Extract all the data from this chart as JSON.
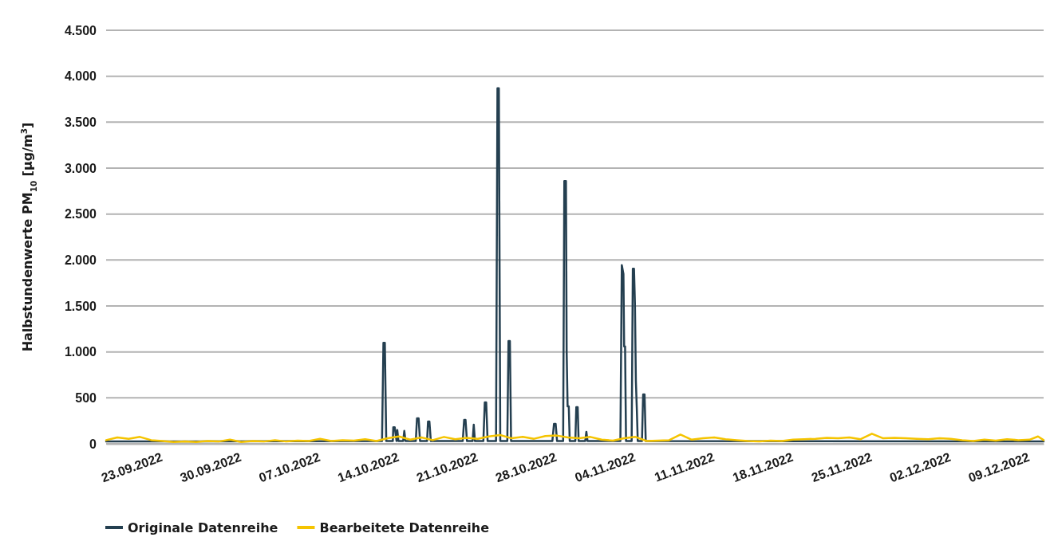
{
  "chart_data": {
    "type": "line",
    "ylabel": "Halbstundenwerte PM$_{10}$  [µg/m$^{3}$]",
    "xlim": [
      "2022-09-18T12:00",
      "2022-12-10T18:00"
    ],
    "xticks": [
      {
        "value": "2022-09-23T00:00",
        "label": "23.09.2022"
      },
      {
        "value": "2022-09-30T00:00",
        "label": "30.09.2022"
      },
      {
        "value": "2022-10-07T00:00",
        "label": "07.10.2022"
      },
      {
        "value": "2022-10-14T00:00",
        "label": "14.10.2022"
      },
      {
        "value": "2022-10-21T00:00",
        "label": "21.10.2022"
      },
      {
        "value": "2022-10-28T00:00",
        "label": "28.10.2022"
      },
      {
        "value": "2022-11-04T00:00",
        "label": "04.11.2022"
      },
      {
        "value": "2022-11-11T00:00",
        "label": "11.11.2022"
      },
      {
        "value": "2022-11-18T00:00",
        "label": "18.11.2022"
      },
      {
        "value": "2022-11-25T00:00",
        "label": "25.11.2022"
      },
      {
        "value": "2022-12-02T00:00",
        "label": "02.12.2022"
      },
      {
        "value": "2022-12-09T00:00",
        "label": "09.12.2022"
      }
    ],
    "ylim": [
      0,
      4500
    ],
    "yticks": [
      0,
      500,
      {
        "value": 1000,
        "label": "1.000"
      },
      {
        "value": 1500,
        "label": "1.500"
      },
      {
        "value": 2000,
        "label": "2.000"
      },
      {
        "value": 2500,
        "label": "2.500"
      },
      {
        "value": 3000,
        "label": "3.000"
      },
      {
        "value": 3500,
        "label": "3.500"
      },
      {
        "value": 4000,
        "label": "4.000"
      },
      {
        "value": 4500,
        "label": "4.500"
      }
    ],
    "grid": "y",
    "legend": "bottom",
    "line_style": "solid",
    "series": [
      {
        "name": "Originale Datenreihe",
        "color": "#243f50",
        "x": [
          "2022-09-18T12:00",
          "2022-10-13T00:00",
          "2022-10-13T03:00",
          "2022-10-13T06:00",
          "2022-10-13T09:00",
          "2022-10-13T23:00",
          "2022-10-14T00:00",
          "2022-10-14T03:00",
          "2022-10-14T07:00",
          "2022-10-14T08:30",
          "2022-10-14T11:00",
          "2022-10-14T21:00",
          "2022-10-14T23:30",
          "2022-10-15T02:00",
          "2022-10-16T00:00",
          "2022-10-16T02:30",
          "2022-10-16T06:00",
          "2022-10-16T09:00",
          "2022-10-17T00:00",
          "2022-10-17T02:00",
          "2022-10-17T05:00",
          "2022-10-17T08:00",
          "2022-10-20T04:00",
          "2022-10-20T07:00",
          "2022-10-20T10:00",
          "2022-10-20T13:00",
          "2022-10-21T01:00",
          "2022-10-21T03:30",
          "2022-10-21T06:00",
          "2022-10-22T00:00",
          "2022-10-22T03:00",
          "2022-10-22T06:00",
          "2022-10-22T09:00",
          "2022-10-23T03:00",
          "2022-10-23T06:00",
          "2022-10-23T09:00",
          "2022-10-23T12:00",
          "2022-10-24T03:00",
          "2022-10-24T05:30",
          "2022-10-24T08:30",
          "2022-10-24T11:00",
          "2022-10-28T03:00",
          "2022-10-28T06:30",
          "2022-10-28T10:00",
          "2022-10-28T13:00",
          "2022-10-29T02:00",
          "2022-10-29T04:30",
          "2022-10-29T08:00",
          "2022-10-29T09:30",
          "2022-10-29T11:30",
          "2022-10-29T14:00",
          "2022-10-29T16:00",
          "2022-10-30T04:00",
          "2022-10-30T06:00",
          "2022-10-30T09:00",
          "2022-10-30T11:00",
          "2022-10-31T01:00",
          "2022-10-31T03:30",
          "2022-10-31T06:00",
          "2022-11-03T04:00",
          "2022-11-03T07:00",
          "2022-11-03T10:30",
          "2022-11-03T12:00",
          "2022-11-03T14:00",
          "2022-11-03T16:00",
          "2022-11-04T04:00",
          "2022-11-04T06:30",
          "2022-11-04T09:00",
          "2022-11-04T11:00",
          "2022-11-04T13:00",
          "2022-11-04T15:00",
          "2022-11-04T17:00",
          "2022-11-05T02:00",
          "2022-11-05T04:30",
          "2022-11-05T07:30",
          "2022-11-05T10:00",
          "2022-12-10T18:00"
        ],
        "values": [
          25,
          30,
          1100,
          1100,
          30,
          30,
          180,
          180,
          30,
          150,
          30,
          30,
          140,
          30,
          30,
          277,
          277,
          30,
          30,
          243,
          243,
          30,
          30,
          260,
          260,
          30,
          30,
          208,
          30,
          30,
          450,
          450,
          30,
          30,
          3870,
          3870,
          30,
          30,
          1118,
          1118,
          30,
          30,
          217,
          217,
          30,
          30,
          2860,
          2860,
          1000,
          407,
          407,
          30,
          30,
          399,
          399,
          30,
          30,
          130,
          30,
          30,
          1945,
          1850,
          1060,
          1060,
          30,
          30,
          1905,
          1905,
          1520,
          685,
          380,
          30,
          30,
          537,
          537,
          30,
          25
        ]
      },
      {
        "name": "Bearbeitete Datenreihe",
        "color": "#f5c400",
        "x": [
          "2022-09-18T12:00",
          "2022-09-19T12:00",
          "2022-09-20T12:00",
          "2022-09-21T12:00",
          "2022-09-22T12:00",
          "2022-09-23T12:00",
          "2022-09-24T12:00",
          "2022-09-25T12:00",
          "2022-09-26T12:00",
          "2022-09-27T12:00",
          "2022-09-28T12:00",
          "2022-09-29T12:00",
          "2022-09-30T12:00",
          "2022-10-01T12:00",
          "2022-10-02T12:00",
          "2022-10-03T12:00",
          "2022-10-04T12:00",
          "2022-10-05T12:00",
          "2022-10-06T12:00",
          "2022-10-07T12:00",
          "2022-10-08T12:00",
          "2022-10-09T12:00",
          "2022-10-10T12:00",
          "2022-10-11T12:00",
          "2022-10-12T12:00",
          "2022-10-13T12:00",
          "2022-10-14T12:00",
          "2022-10-15T12:00",
          "2022-10-16T12:00",
          "2022-10-17T12:00",
          "2022-10-18T12:00",
          "2022-10-19T12:00",
          "2022-10-20T12:00",
          "2022-10-21T12:00",
          "2022-10-22T12:00",
          "2022-10-23T12:00",
          "2022-10-24T12:00",
          "2022-10-25T12:00",
          "2022-10-26T12:00",
          "2022-10-27T12:00",
          "2022-10-28T12:00",
          "2022-10-29T12:00",
          "2022-10-30T12:00",
          "2022-10-31T12:00",
          "2022-11-01T12:00",
          "2022-11-02T12:00",
          "2022-11-03T12:00",
          "2022-11-04T12:00",
          "2022-11-05T12:00",
          "2022-11-06T12:00",
          "2022-11-07T12:00",
          "2022-11-08T12:00",
          "2022-11-09T12:00",
          "2022-11-10T12:00",
          "2022-11-11T12:00",
          "2022-11-12T12:00",
          "2022-11-13T12:00",
          "2022-11-14T12:00",
          "2022-11-15T12:00",
          "2022-11-16T12:00",
          "2022-11-17T12:00",
          "2022-11-18T12:00",
          "2022-11-19T12:00",
          "2022-11-20T12:00",
          "2022-11-21T12:00",
          "2022-11-22T12:00",
          "2022-11-23T12:00",
          "2022-11-24T12:00",
          "2022-11-25T12:00",
          "2022-11-26T12:00",
          "2022-11-27T12:00",
          "2022-11-28T12:00",
          "2022-11-29T12:00",
          "2022-11-30T12:00",
          "2022-12-01T12:00",
          "2022-12-02T12:00",
          "2022-12-03T12:00",
          "2022-12-04T12:00",
          "2022-12-05T12:00",
          "2022-12-06T12:00",
          "2022-12-07T12:00",
          "2022-12-08T12:00",
          "2022-12-09T12:00",
          "2022-12-10T06:00",
          "2022-12-10T18:00"
        ],
        "values": [
          40,
          70,
          55,
          75,
          40,
          30,
          20,
          25,
          20,
          30,
          25,
          45,
          20,
          30,
          25,
          40,
          25,
          35,
          30,
          55,
          30,
          40,
          35,
          50,
          30,
          60,
          80,
          45,
          70,
          40,
          75,
          50,
          65,
          55,
          80,
          95,
          60,
          75,
          55,
          85,
          90,
          70,
          60,
          75,
          45,
          35,
          60,
          75,
          30,
          35,
          40,
          100,
          45,
          60,
          70,
          50,
          40,
          30,
          25,
          35,
          30,
          45,
          50,
          55,
          65,
          60,
          70,
          50,
          110,
          60,
          65,
          60,
          55,
          50,
          60,
          55,
          40,
          30,
          45,
          35,
          50,
          40,
          45,
          80,
          40
        ]
      }
    ]
  }
}
